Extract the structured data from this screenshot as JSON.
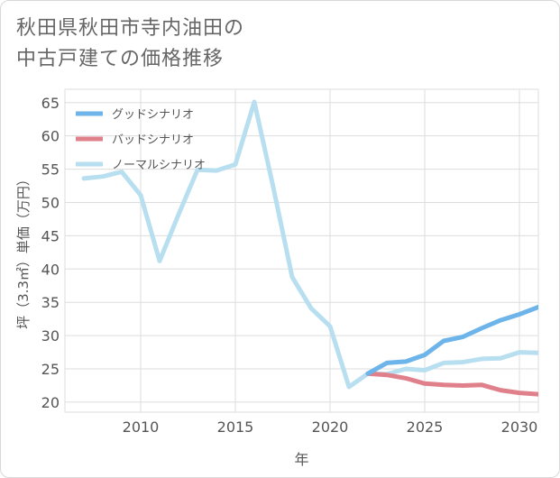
{
  "title": {
    "line1": "秋田県秋田市寺内油田の",
    "line2": "中古戸建ての価格推移"
  },
  "chart_data": {
    "type": "line",
    "xlabel": "年",
    "ylabel": "坪（3.3㎡）単価（万円）",
    "xlim": [
      2006,
      2031
    ],
    "ylim": [
      18.5,
      67
    ],
    "xticks": [
      2010,
      2015,
      2020,
      2025,
      2030
    ],
    "yticks": [
      20,
      25,
      30,
      35,
      40,
      45,
      50,
      55,
      60,
      65
    ],
    "grid": true,
    "legend_position": "top-left",
    "series": [
      {
        "name": "グッドシナリオ",
        "color": "#6cb4ea",
        "x": [
          2022,
          2023,
          2024,
          2025,
          2026,
          2027,
          2028,
          2029,
          2030,
          2031
        ],
        "y": [
          24.3,
          25.9,
          26.1,
          27.1,
          29.2,
          29.8,
          31.1,
          32.3,
          33.2,
          34.3
        ]
      },
      {
        "name": "バッドシナリオ",
        "color": "#e0808a",
        "x": [
          2022,
          2023,
          2024,
          2025,
          2026,
          2027,
          2028,
          2029,
          2030,
          2031
        ],
        "y": [
          24.3,
          24.1,
          23.6,
          22.8,
          22.6,
          22.5,
          22.6,
          21.8,
          21.4,
          21.2
        ]
      },
      {
        "name": "ノーマルシナリオ",
        "color": "#b8dff0",
        "x": [
          2007,
          2008,
          2009,
          2010,
          2011,
          2012,
          2013,
          2014,
          2015,
          2016,
          2017,
          2018,
          2019,
          2020,
          2021,
          2022,
          2023,
          2024,
          2025,
          2026,
          2027,
          2028,
          2029,
          2030,
          2031
        ],
        "y": [
          53.6,
          53.9,
          54.6,
          51.1,
          41.2,
          48.2,
          54.9,
          54.8,
          55.7,
          65.1,
          52.3,
          38.8,
          34.1,
          31.4,
          22.3,
          24.3,
          24.2,
          25.0,
          24.8,
          25.9,
          26.0,
          26.5,
          26.6,
          27.5,
          27.4
        ]
      }
    ]
  }
}
